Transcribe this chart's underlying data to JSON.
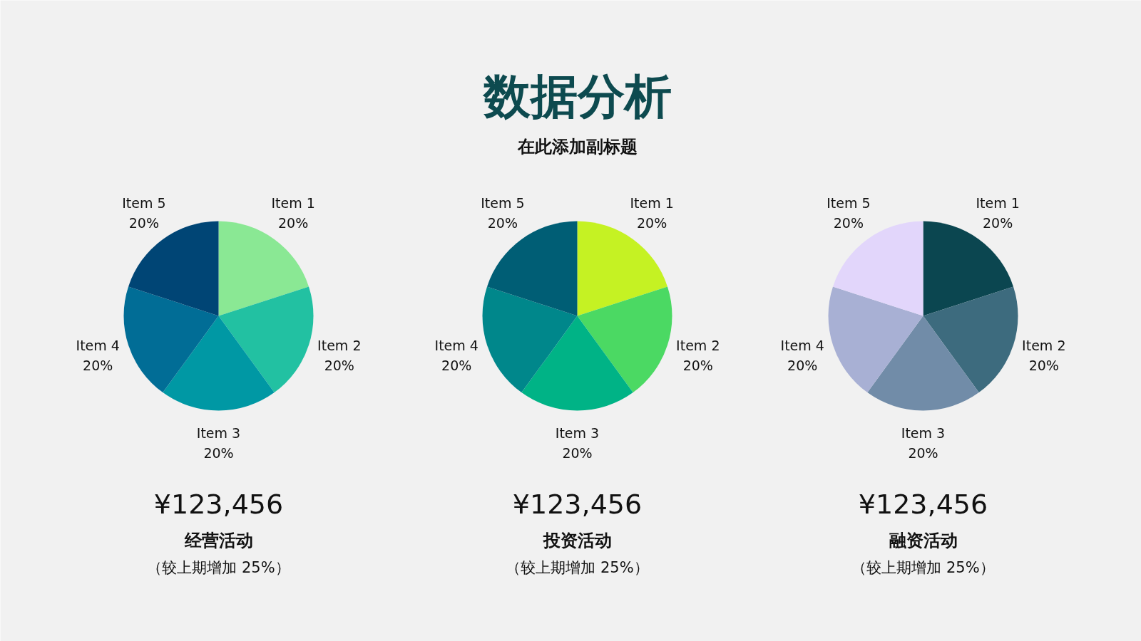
{
  "chart_data": [
    {
      "type": "pie",
      "categories": [
        "Item 1",
        "Item 2",
        "Item 3",
        "Item 4",
        "Item 5"
      ],
      "values": [
        20,
        20,
        20,
        20,
        20
      ],
      "value_labels": [
        "20%",
        "20%",
        "20%",
        "20%",
        "20%"
      ],
      "colors": [
        "#8ae894",
        "#22c1a2",
        "#0098a4",
        "#016d96",
        "#004575"
      ],
      "annotations": [
        "¥123,456",
        "经营活动",
        "（较上期增加 25%）"
      ]
    },
    {
      "type": "pie",
      "title": "数据分析",
      "subtitle": "在此添加副标题",
      "categories": [
        "Item 1",
        "Item 2",
        "Item 3",
        "Item 4",
        "Item 5"
      ],
      "values": [
        20,
        20,
        20,
        20,
        20
      ],
      "value_labels": [
        "20%",
        "20%",
        "20%",
        "20%",
        "20%"
      ],
      "colors": [
        "#c5f223",
        "#4bd963",
        "#00b386",
        "#00878b",
        "#005e75"
      ],
      "annotations": [
        "¥123,456",
        "投资活动",
        "（较上期增加 25%）"
      ]
    },
    {
      "type": "pie",
      "categories": [
        "Item 1",
        "Item 2",
        "Item 3",
        "Item 4",
        "Item 5"
      ],
      "values": [
        20,
        20,
        20,
        20,
        20
      ],
      "value_labels": [
        "20%",
        "20%",
        "20%",
        "20%",
        "20%"
      ],
      "colors": [
        "#0b4650",
        "#3d6b7e",
        "#718ca8",
        "#a8b0d4",
        "#e2d6fb"
      ],
      "annotations": [
        "¥123,456",
        "融资活动",
        "（较上期增加 25%）"
      ]
    }
  ]
}
